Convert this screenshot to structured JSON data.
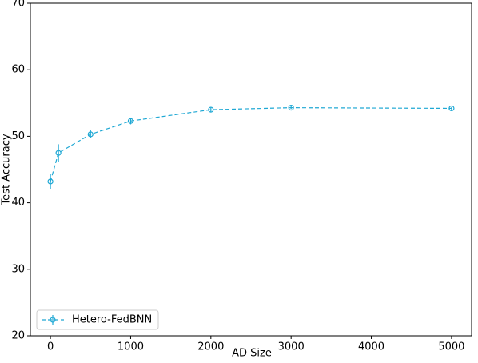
{
  "chart_data": {
    "type": "line",
    "x_label": "AD Size",
    "y_label": "Test Accuracy",
    "x": [
      0,
      100,
      500,
      1000,
      2000,
      3000,
      5000
    ],
    "series": [
      {
        "name": "Hetero-FedBNN",
        "color": "#1fa8d4",
        "values": [
          43.2,
          47.5,
          50.3,
          52.3,
          54.0,
          54.3,
          54.2
        ],
        "errors": [
          1.2,
          1.3,
          0.6,
          0.5,
          0.3,
          0.2,
          0.2
        ]
      }
    ],
    "xlim": [
      -250,
      5250
    ],
    "ylim": [
      20,
      70
    ],
    "xticks": [
      0,
      1000,
      2000,
      3000,
      4000,
      5000
    ],
    "yticks": [
      20,
      30,
      40,
      50,
      60,
      70
    ],
    "grid": false,
    "legend": "lower left"
  }
}
